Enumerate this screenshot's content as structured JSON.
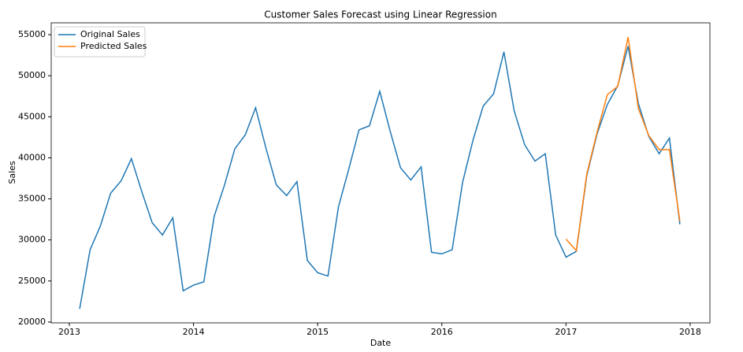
{
  "chart_data": {
    "type": "line",
    "title": "Customer Sales Forecast using Linear Regression",
    "x_label": "Date",
    "y_label": "Sales",
    "xlim": [
      2012.854,
      2018.159
    ],
    "xticks": [
      2013,
      2014,
      2015,
      2016,
      2017,
      2018
    ],
    "ylim": [
      19900,
      56440
    ],
    "yticks": [
      20000,
      25000,
      30000,
      35000,
      40000,
      45000,
      50000,
      55000
    ],
    "legend": "upper left",
    "series": [
      {
        "name": "Original Sales",
        "color": "#1f77b4",
        "x": [
          2013.083,
          2013.167,
          2013.25,
          2013.333,
          2013.417,
          2013.5,
          2013.583,
          2013.667,
          2013.75,
          2013.833,
          2013.917,
          2014,
          2014.083,
          2014.167,
          2014.25,
          2014.333,
          2014.417,
          2014.5,
          2014.583,
          2014.667,
          2014.75,
          2014.833,
          2014.917,
          2015,
          2015.083,
          2015.167,
          2015.25,
          2015.333,
          2015.417,
          2015.5,
          2015.583,
          2015.667,
          2015.75,
          2015.833,
          2015.917,
          2016,
          2016.083,
          2016.167,
          2016.25,
          2016.333,
          2016.417,
          2016.5,
          2016.583,
          2016.667,
          2016.75,
          2016.833,
          2016.917,
          2017,
          2017.083,
          2017.167,
          2017.25,
          2017.333,
          2017.417,
          2017.5,
          2017.583,
          2017.667,
          2017.75,
          2017.833,
          2017.917
        ],
        "values": [
          21600,
          28800,
          31700,
          35700,
          37200,
          39900,
          35900,
          32100,
          30600,
          32700,
          23800,
          24500,
          24900,
          32900,
          36700,
          41100,
          42800,
          46100,
          41200,
          36700,
          35400,
          37100,
          27500,
          26000,
          25600,
          34000,
          38600,
          43400,
          43900,
          48100,
          43300,
          38800,
          37300,
          38900,
          28500,
          28300,
          28800,
          37000,
          42100,
          46300,
          47800,
          52900,
          45700,
          41600,
          39600,
          40500,
          30600,
          27900,
          28600,
          37800,
          42900,
          46500,
          48800,
          53600,
          46600,
          42600,
          40500,
          42400,
          31900
        ]
      },
      {
        "name": "Predicted Sales",
        "color": "#ff7f0e",
        "x": [
          2017,
          2017.083,
          2017.167,
          2017.25,
          2017.333,
          2017.417,
          2017.5,
          2017.583,
          2017.667,
          2017.75,
          2017.833,
          2017.917
        ],
        "values": [
          30100,
          28700,
          38000,
          43100,
          47700,
          48700,
          54700,
          46000,
          42700,
          41000,
          41000,
          32300
        ]
      }
    ]
  }
}
